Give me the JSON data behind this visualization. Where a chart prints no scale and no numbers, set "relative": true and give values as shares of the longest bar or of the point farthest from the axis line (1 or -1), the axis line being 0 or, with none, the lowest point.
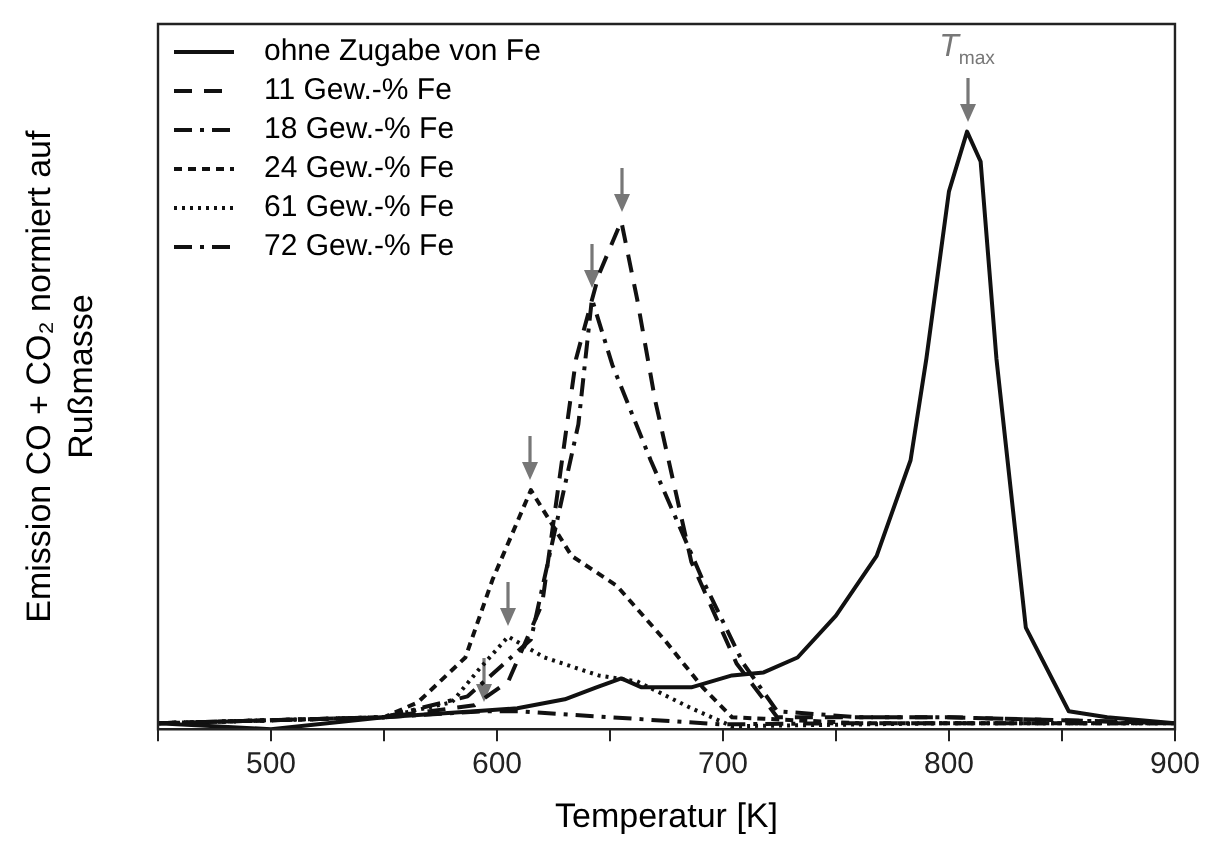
{
  "chart_data": {
    "type": "line",
    "xlabel": "Temperatur [K]",
    "ylabel": "Emission CO + CO₂ normiert auf Rußmasse",
    "relative": true,
    "xlim": [
      450,
      900
    ],
    "xticks": [
      {
        "value": 450,
        "label": null
      },
      500,
      {
        "value": 550,
        "label": null
      },
      600,
      {
        "value": 650,
        "label": null
      },
      700,
      {
        "value": 750,
        "label": null
      },
      800,
      {
        "value": 850,
        "label": null
      },
      900
    ],
    "grid": false,
    "legend": "top left",
    "marker": "none",
    "annotations": [
      "T$_{max}$"
    ],
    "series": [
      {
        "name": "ohne Zugabe von Fe",
        "color": "#111111",
        "line_style": "solid",
        "x": [
          450,
          500,
          550,
          590,
          609,
          630,
          644,
          655,
          664,
          686,
          704,
          718,
          733,
          750,
          768,
          783,
          790,
          800,
          808,
          814,
          821,
          834,
          853,
          870,
          900
        ],
        "values": [
          0.01,
          0.0,
          0.02,
          0.03,
          0.035,
          0.05,
          0.07,
          0.085,
          0.07,
          0.07,
          0.09,
          0.095,
          0.12,
          0.19,
          0.29,
          0.45,
          0.62,
          0.9,
          1.0,
          0.95,
          0.62,
          0.17,
          0.03,
          0.02,
          0.01
        ]
      },
      {
        "name": "11 Gew.-% Fe",
        "color": "#111111",
        "line_style": "dashed",
        "x": [
          450,
          550,
          590,
          605,
          620,
          635,
          645,
          655,
          662,
          670,
          686,
          706,
          724,
          760,
          800,
          900
        ],
        "values": [
          0.01,
          0.02,
          0.04,
          0.08,
          0.21,
          0.62,
          0.76,
          0.85,
          0.72,
          0.55,
          0.28,
          0.11,
          0.02,
          0.02,
          0.02,
          0.01
        ]
      },
      {
        "name": "18 Gew.-% Fe",
        "color": "#111111",
        "line_style": "dashdot",
        "x": [
          450,
          550,
          587,
          615,
          636,
          642,
          651,
          668,
          691,
          709,
          724,
          760,
          800,
          900
        ],
        "values": [
          0.01,
          0.02,
          0.055,
          0.15,
          0.51,
          0.72,
          0.61,
          0.45,
          0.25,
          0.11,
          0.03,
          0.02,
          0.02,
          0.01
        ]
      },
      {
        "name": "24 Gew.-% Fe",
        "color": "#111111",
        "line_style": "dotted_dense",
        "x": [
          450,
          550,
          565,
          586,
          598,
          615,
          633,
          653,
          674,
          691,
          704,
          760,
          900
        ],
        "values": [
          0.01,
          0.02,
          0.045,
          0.12,
          0.25,
          0.4,
          0.29,
          0.24,
          0.15,
          0.07,
          0.02,
          0.01,
          0.01
        ]
      },
      {
        "name": "61 Gew.-% Fe",
        "color": "#111111",
        "line_style": "dotted",
        "x": [
          450,
          550,
          580,
          592,
          605,
          621,
          645,
          662,
          686,
          704,
          800,
          900
        ],
        "values": [
          0.01,
          0.02,
          0.045,
          0.1,
          0.155,
          0.12,
          0.09,
          0.08,
          0.035,
          0.005,
          0.01,
          0.01
        ]
      },
      {
        "name": "72 Gew.-% Fe",
        "color": "#111111",
        "line_style": "dashdot",
        "x": [
          450,
          550,
          594,
          610,
          650,
          700,
          750,
          800,
          900
        ],
        "values": [
          0.01,
          0.02,
          0.03,
          0.03,
          0.02,
          0.008,
          0.01,
          0.01,
          0.01
        ]
      }
    ]
  }
}
